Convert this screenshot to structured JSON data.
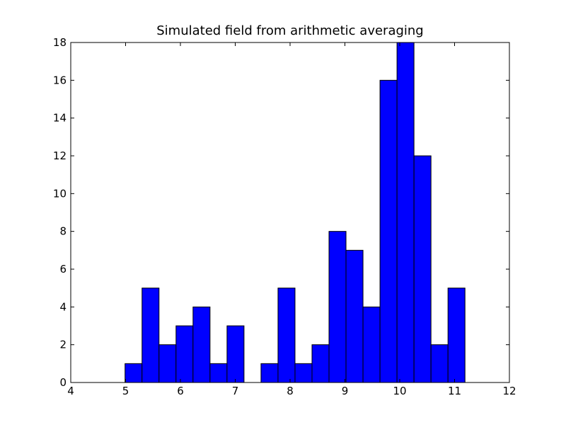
{
  "chart_data": {
    "type": "bar",
    "title": "Simulated field from arithmetic averaging",
    "xlabel": "",
    "ylabel": "",
    "xlim": [
      4,
      12
    ],
    "ylim": [
      0,
      18
    ],
    "xticks": [
      4,
      5,
      6,
      7,
      8,
      9,
      10,
      11,
      12
    ],
    "yticks": [
      0,
      2,
      4,
      6,
      8,
      10,
      12,
      14,
      16,
      18
    ],
    "grid": false,
    "bar_color": "#0000ff",
    "edge_color": "#000000",
    "bin_edges": [
      4.99,
      5.3,
      5.61,
      5.92,
      6.23,
      6.54,
      6.85,
      7.16,
      7.47,
      7.78,
      8.09,
      8.4,
      8.71,
      9.02,
      9.33,
      9.64,
      9.95,
      10.26,
      10.57,
      10.88,
      11.19
    ],
    "values": [
      1,
      5,
      2,
      3,
      4,
      1,
      3,
      0,
      1,
      5,
      1,
      2,
      8,
      7,
      4,
      16,
      18,
      12,
      2,
      5
    ]
  }
}
